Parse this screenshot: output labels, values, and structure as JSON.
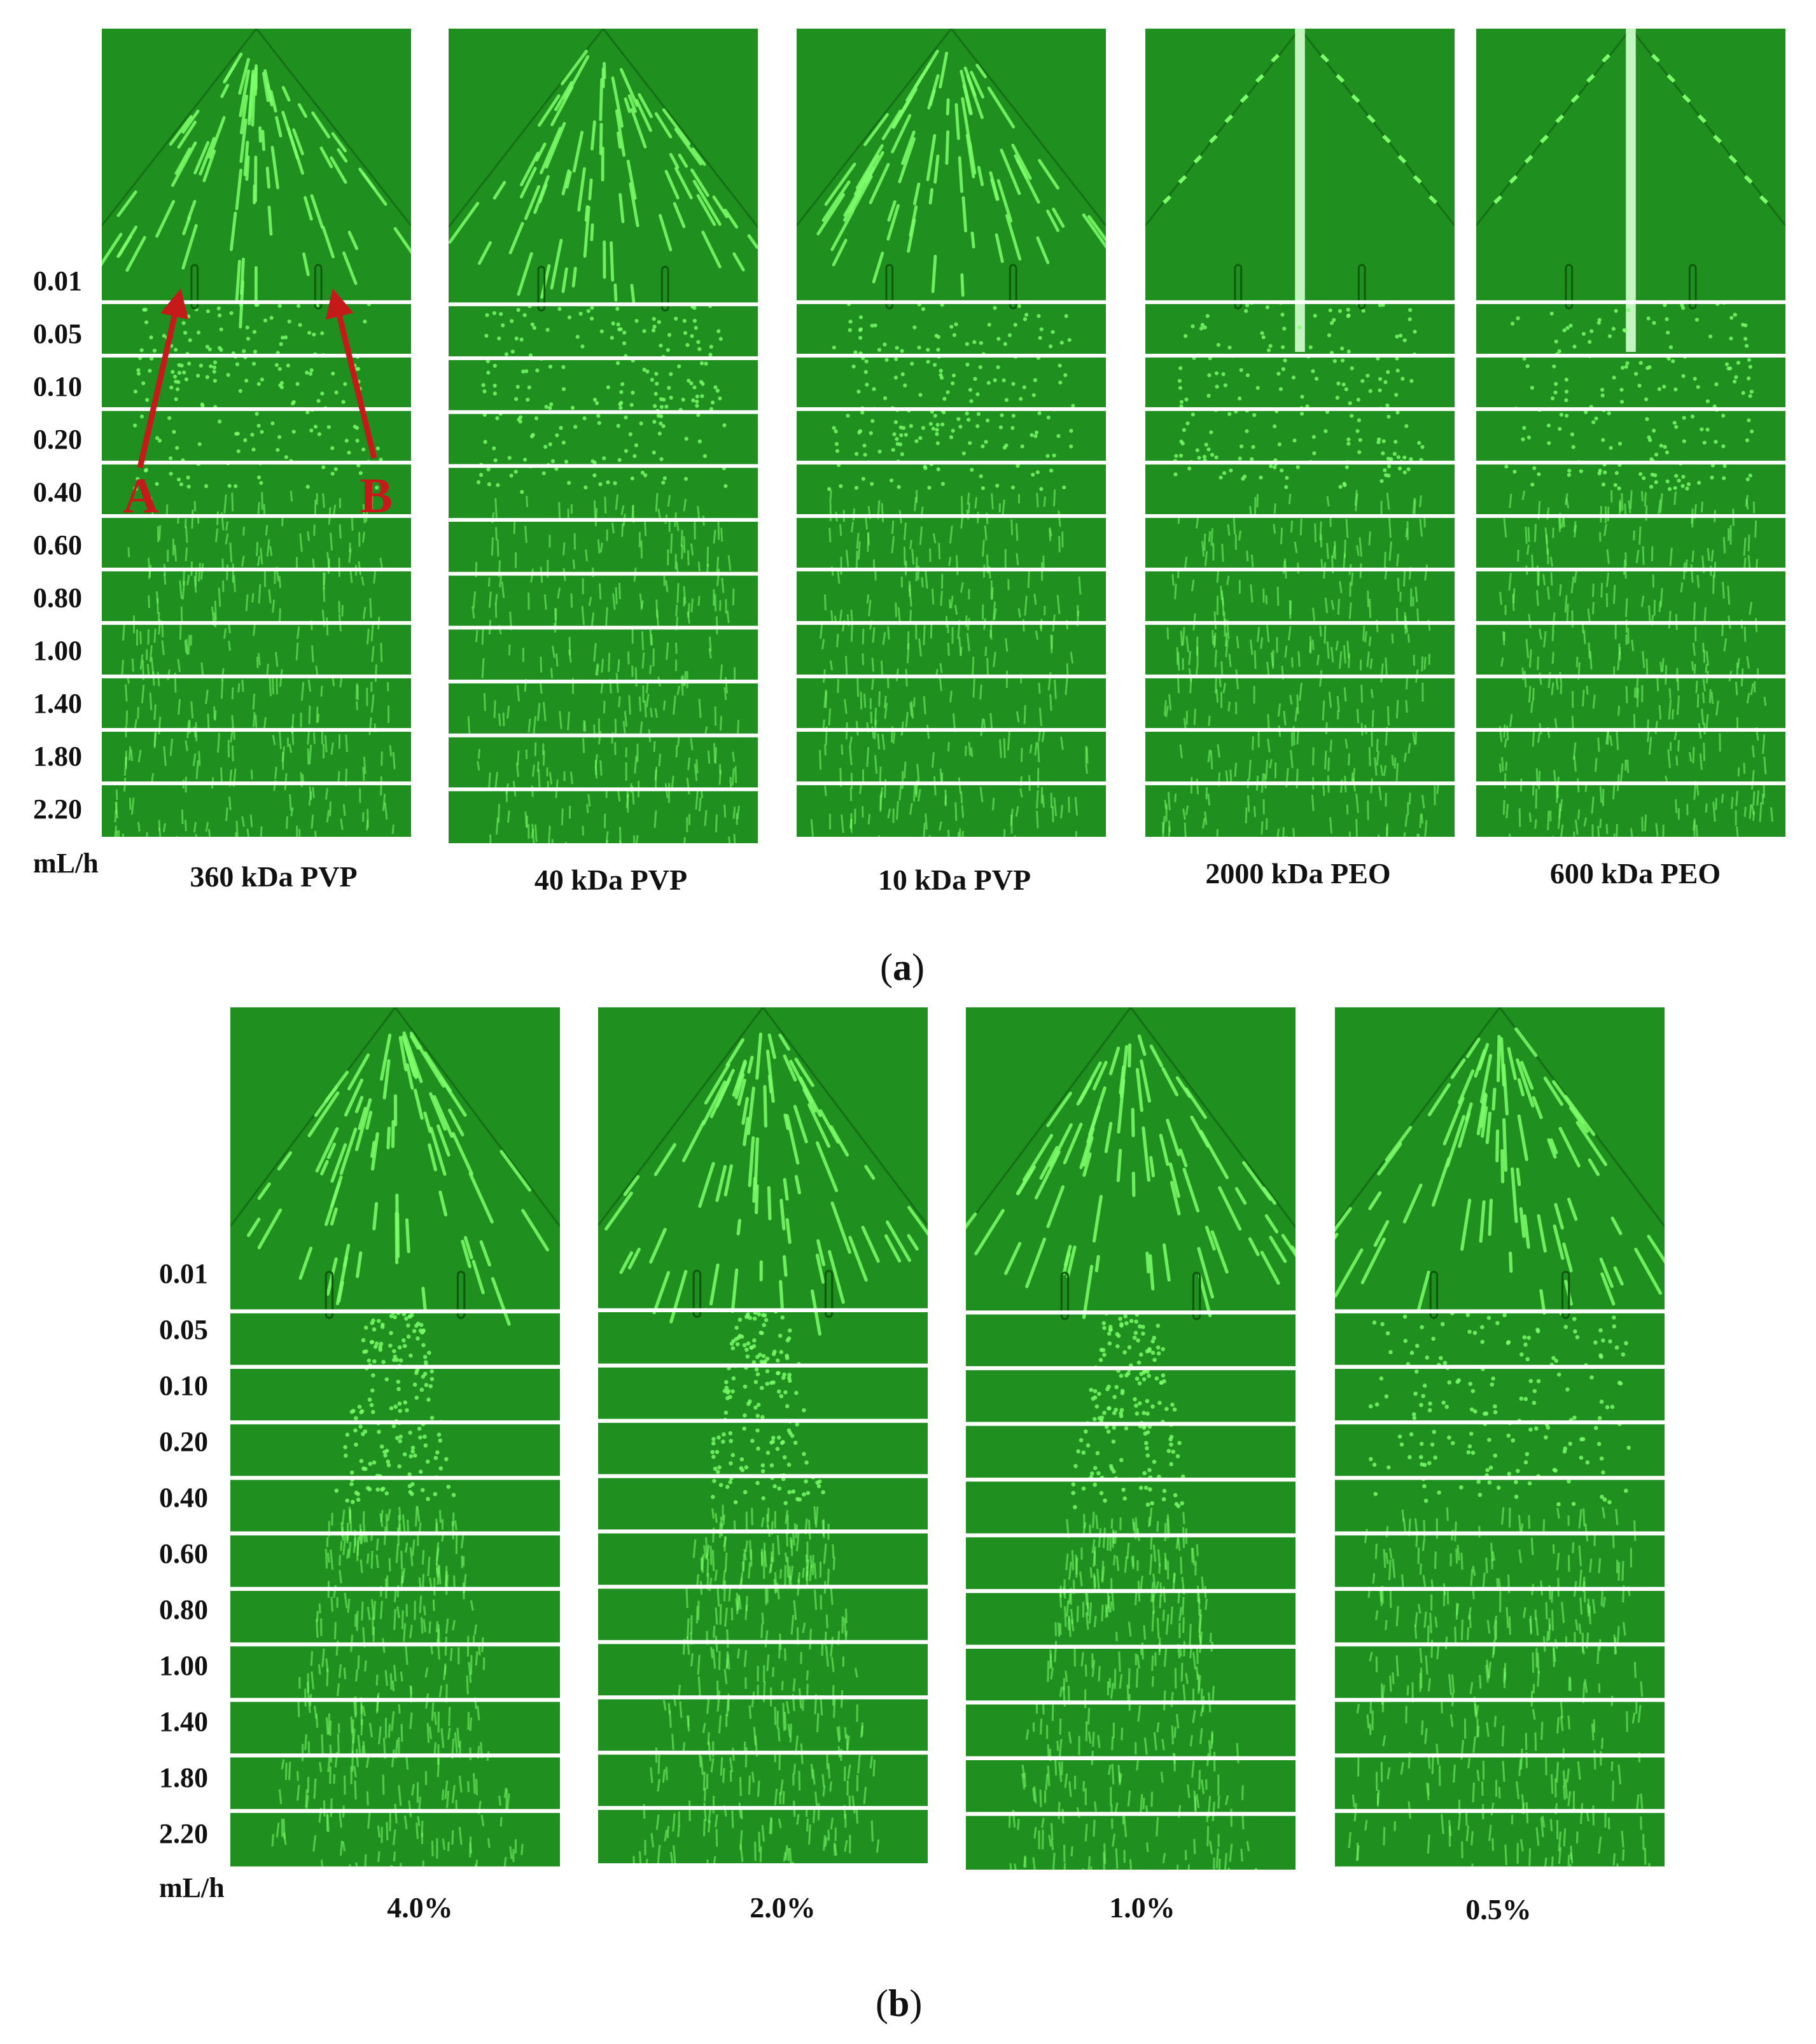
{
  "panel_a": {
    "rates": [
      "0.01",
      "0.05",
      "0.10",
      "0.20",
      "0.40",
      "0.60",
      "0.80",
      "1.00",
      "1.40",
      "1.80",
      "2.20"
    ],
    "unit": "mL/h",
    "columns": [
      "360 kDa PVP",
      "40 kDa PVP",
      "10 kDa PVP",
      "2000 kDa PEO",
      "600 kDa PEO"
    ],
    "markers": [
      "A",
      "B"
    ],
    "caption_letter": "a"
  },
  "panel_b": {
    "rates": [
      "0.01",
      "0.05",
      "0.10",
      "0.20",
      "0.40",
      "0.60",
      "0.80",
      "1.00",
      "1.40",
      "1.80",
      "2.20"
    ],
    "unit": "mL/h",
    "columns": [
      "4.0%",
      "2.0%",
      "1.0%",
      "0.5%"
    ],
    "caption_letter": "b"
  },
  "colors": {
    "image_background": "#1f8f1f",
    "streak": "#7dff6a",
    "separator": "#ffffff",
    "annotation": "#c41a1a"
  }
}
